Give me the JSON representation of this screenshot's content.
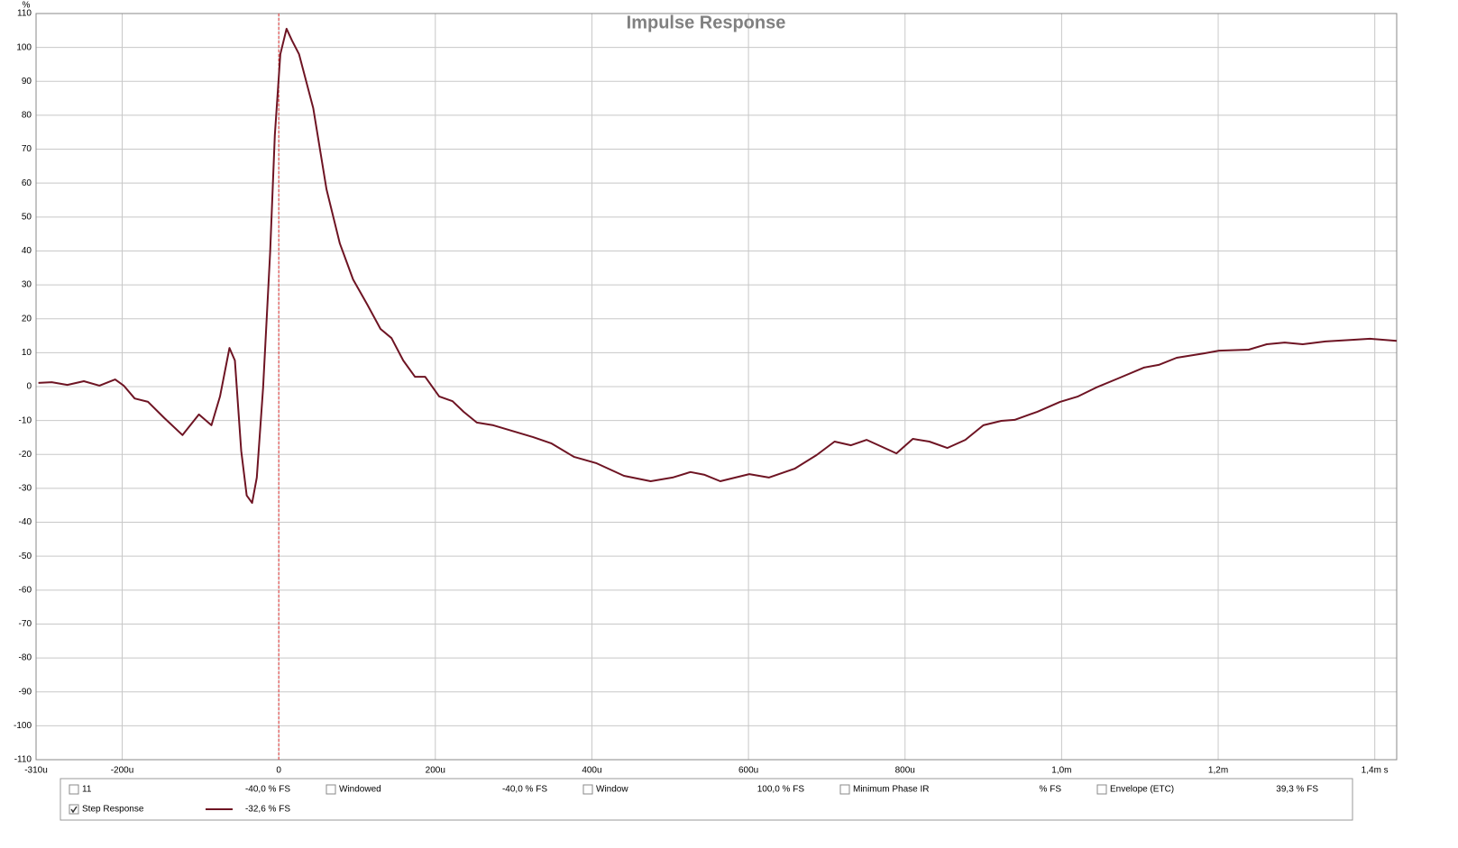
{
  "chart_data": {
    "type": "line",
    "title": "Impulse Response",
    "y_unit": "%",
    "grid": true,
    "xlim": [
      -310,
      1428
    ],
    "ylim": [
      -110,
      110
    ],
    "xticks": [
      {
        "value": -310,
        "label": "-310u"
      },
      {
        "value": -200,
        "label": "-200u"
      },
      0,
      {
        "value": 200,
        "label": "200u"
      },
      {
        "value": 400,
        "label": "400u"
      },
      {
        "value": 600,
        "label": "600u"
      },
      {
        "value": 800,
        "label": "800u"
      },
      {
        "value": 1000,
        "label": "1,0m"
      },
      {
        "value": 1200,
        "label": "1,2m"
      },
      {
        "value": 1400,
        "label": "1,4m s"
      }
    ],
    "yticks": [
      110,
      100,
      90,
      80,
      70,
      60,
      50,
      40,
      30,
      20,
      10,
      0,
      -10,
      -20,
      -30,
      -40,
      -50,
      -60,
      -70,
      -80,
      -90,
      -100,
      -110
    ],
    "marker": {
      "x": 0,
      "color": "#e03030"
    },
    "x": [
      -307,
      -290,
      -270,
      -249,
      -229,
      -209,
      -198,
      -184,
      -167,
      -146,
      -123,
      -102,
      -86,
      -75,
      -63,
      -56,
      -48,
      -41,
      -34,
      -28,
      -20,
      -11,
      -5,
      2,
      10,
      17,
      26,
      44,
      61,
      78,
      95,
      113,
      130,
      144,
      159,
      174,
      187,
      205,
      222,
      236,
      253,
      274,
      325,
      348,
      377,
      406,
      441,
      475,
      503,
      526,
      544,
      564,
      601,
      626,
      659,
      687,
      710,
      731,
      751,
      771,
      789,
      810,
      831,
      854,
      877,
      900,
      923,
      940,
      969,
      998,
      1021,
      1044,
      1072,
      1105,
      1124,
      1147,
      1182,
      1201,
      1239,
      1262,
      1285,
      1308,
      1337,
      1371,
      1394,
      1428
    ],
    "series": [
      {
        "name": "Step Response",
        "color": "#6e1423",
        "checked": true,
        "readout": "-32,6 % FS",
        "readout_color": "#6e1423",
        "values": [
          1.1,
          1.3,
          0.5,
          1.6,
          0.3,
          2.1,
          0.3,
          -3.5,
          -4.5,
          -9.3,
          -14.3,
          -8.2,
          -11.4,
          -2.9,
          11.4,
          7.7,
          -18.9,
          -32.1,
          -34.3,
          -26.8,
          -0.3,
          39.6,
          74.1,
          98,
          105.5,
          102,
          98,
          82.1,
          58.2,
          42.2,
          31.6,
          24.2,
          17,
          14.3,
          7.7,
          2.9,
          2.9,
          -2.9,
          -4.3,
          -7.4,
          -10.6,
          -11.4,
          -14.9,
          -16.7,
          -20.7,
          -22.6,
          -26.3,
          -27.9,
          -26.8,
          -25.2,
          -26,
          -27.9,
          -25.8,
          -26.8,
          -24.2,
          -20.2,
          -16.2,
          -17.3,
          -15.7,
          -17.8,
          -19.7,
          -15.4,
          -16.2,
          -18.1,
          -15.7,
          -11.4,
          -10.1,
          -9.8,
          -7.4,
          -4.5,
          -2.9,
          -0.3,
          2.4,
          5.6,
          6.4,
          8.5,
          9.8,
          10.6,
          10.9,
          12.5,
          13,
          12.5,
          13.3,
          13.8,
          14.1,
          13.5
        ]
      }
    ],
    "legend_panel": [
      {
        "name": "11",
        "readout": "-40,0 % FS",
        "color": "#d0103a",
        "checked": false
      },
      {
        "name": "Windowed",
        "readout": "-40,0 % FS",
        "color": "#d0103a",
        "checked": false
      },
      {
        "name": "Window",
        "readout": "100,0 % FS",
        "color": "#1020d0",
        "checked": false
      },
      {
        "name": "Minimum Phase IR",
        "readout": "% FS",
        "color": "#a8a8a8",
        "checked": false
      },
      {
        "name": "Envelope (ETC)",
        "readout": "39,3 % FS",
        "color": "#8b0a2a",
        "checked": false
      }
    ]
  }
}
